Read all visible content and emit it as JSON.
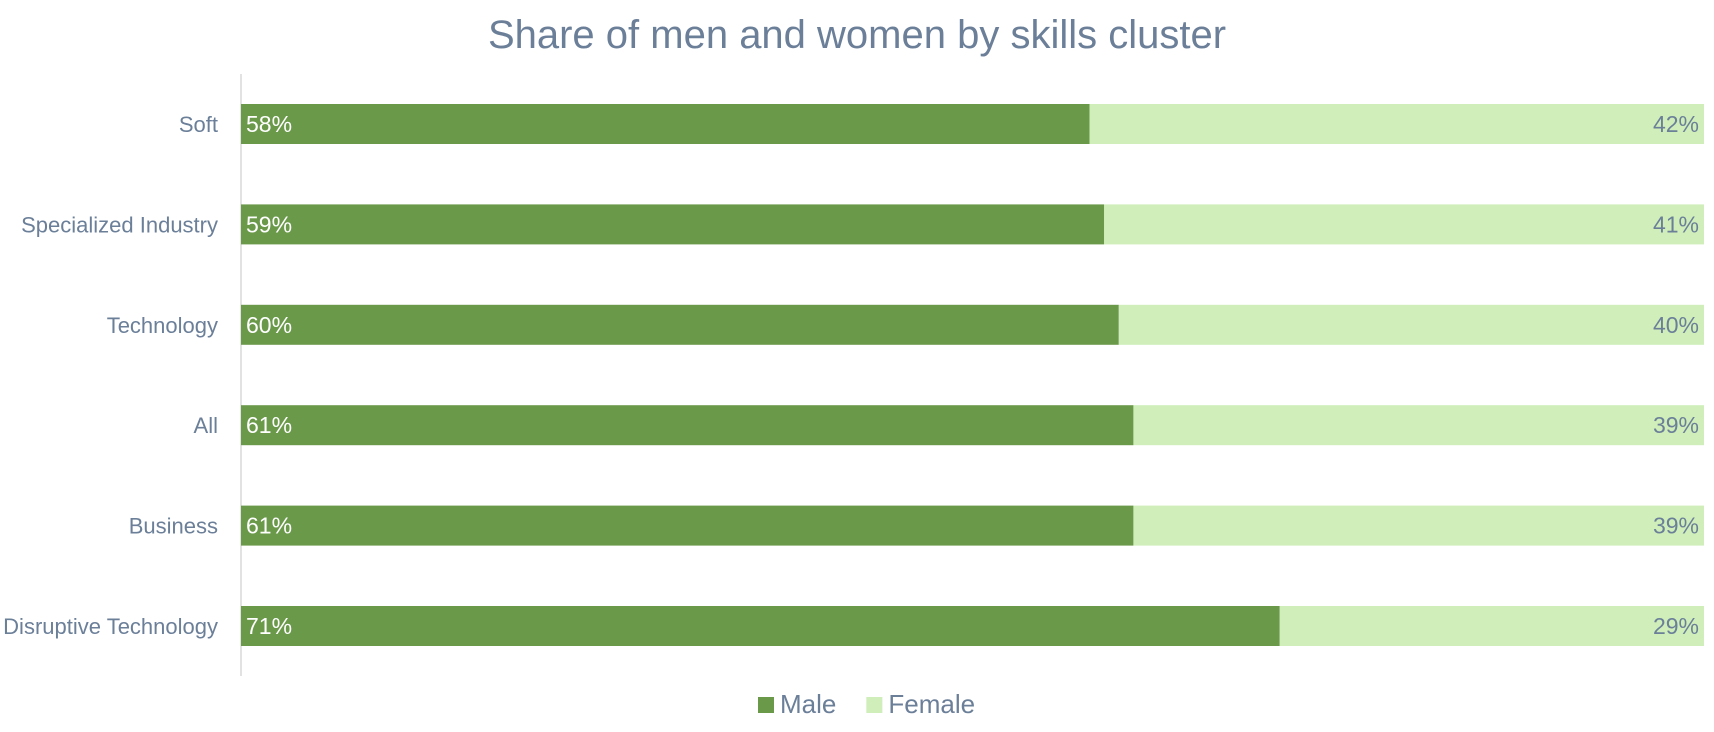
{
  "chart_data": {
    "type": "bar",
    "orientation": "horizontal",
    "stacked": true,
    "title": "Share of men and women by skills cluster",
    "categories": [
      "Soft",
      "Specialized Industry",
      "Technology",
      "All",
      "Business",
      "Disruptive Technology"
    ],
    "series": [
      {
        "name": "Male",
        "color": "#6a994a",
        "label_color": "#ffffff",
        "values": [
          58,
          59,
          60,
          61,
          61,
          71
        ],
        "labels": [
          "58%",
          "59%",
          "60%",
          "61%",
          "61%",
          "71%"
        ]
      },
      {
        "name": "Female",
        "color": "#cfeeb9",
        "label_color": "#6b7f99",
        "values": [
          42,
          41,
          40,
          39,
          39,
          29
        ],
        "labels": [
          "42%",
          "41%",
          "40%",
          "39%",
          "39%",
          "29%"
        ]
      }
    ],
    "xlim": [
      0,
      100
    ],
    "unit": "%",
    "grid": false,
    "legend": "bottom"
  }
}
